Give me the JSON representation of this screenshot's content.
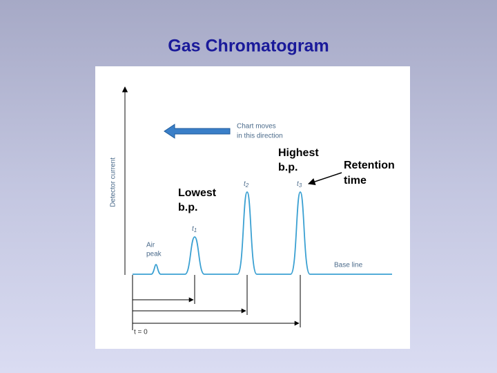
{
  "title": "Gas Chromatogram",
  "diagram": {
    "y_axis_label": "Detector current",
    "chart_direction": [
      "Chart moves",
      "in this direction"
    ],
    "air_peak": [
      "Air",
      "peak"
    ],
    "peaks": [
      {
        "symbol": "t",
        "sub": "1"
      },
      {
        "symbol": "t",
        "sub": "2"
      },
      {
        "symbol": "t",
        "sub": "3"
      }
    ],
    "baseline_label": "Base line",
    "start_label": "t = 0"
  },
  "annotations": {
    "lowest": [
      "Lowest",
      "b.p."
    ],
    "highest": [
      "Highest",
      "b.p."
    ],
    "retention": [
      "Retention",
      "time"
    ]
  }
}
